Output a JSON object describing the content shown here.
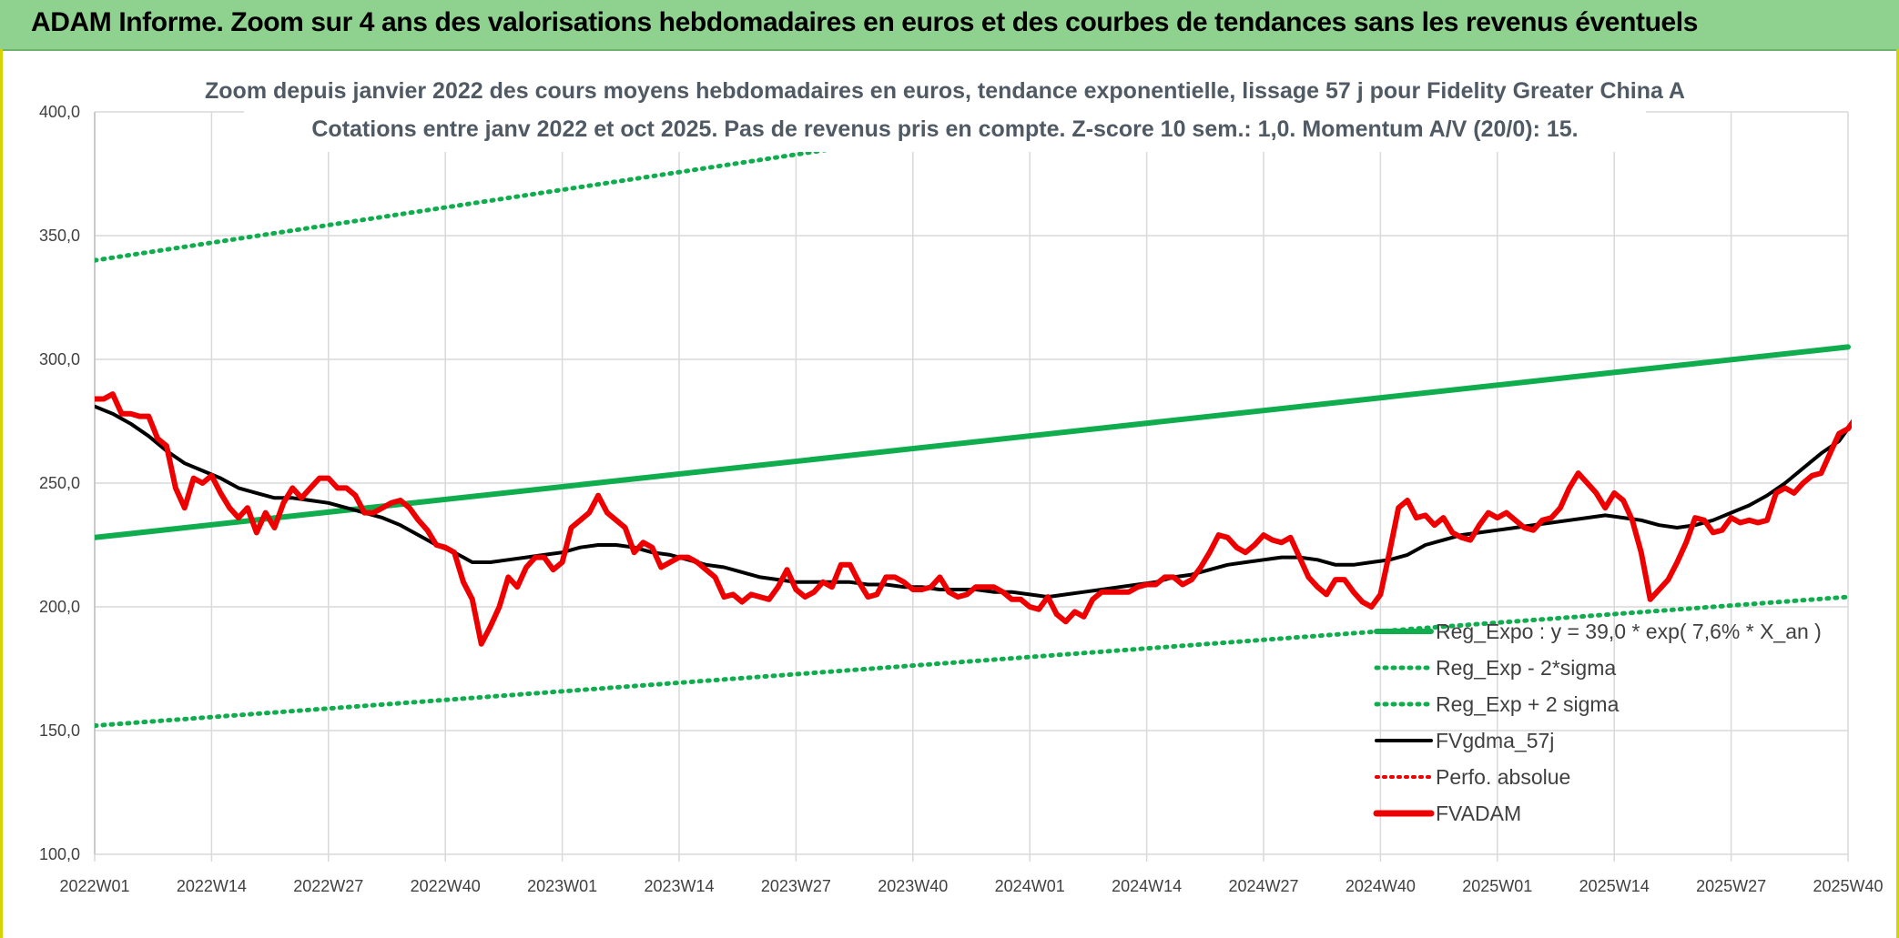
{
  "banner": {
    "title": "ADAM Informe. Zoom sur 4 ans des valorisations hebdomadaires en euros et des courbes de tendances sans les revenus éventuels"
  },
  "colors": {
    "banner_bg": "#8fd18e",
    "trend_green": "#10ad4e",
    "fv_black": "#000000",
    "fvadam_red": "#ee0000",
    "grid": "#d9d9d9"
  },
  "chart_data": {
    "type": "line",
    "title": "Zoom depuis janvier 2022 des cours moyens hebdomadaires en euros, tendance exponentielle, lissage 57 j pour Fidelity Greater China A",
    "subtitle": "Cotations entre janv 2022 et oct 2025. Pas de revenus pris en compte. Z-score 10 sem.: 1,0. Momentum A/V (20/0): 15.",
    "xlabel": "",
    "ylabel": "",
    "ylim": [
      100,
      400
    ],
    "yticks": [
      "100,0",
      "150,0",
      "200,0",
      "250,0",
      "300,0",
      "350,0",
      "400,0"
    ],
    "ytick_values": [
      100,
      150,
      200,
      250,
      300,
      350,
      400
    ],
    "x_range_weeks": [
      0,
      195
    ],
    "xticks": [
      "2022W01",
      "2022W14",
      "2022W27",
      "2022W40",
      "2023W01",
      "2023W14",
      "2023W27",
      "2023W40",
      "2024W01",
      "2024W14",
      "2024W27",
      "2024W40",
      "2025W01",
      "2025W14",
      "2025W27",
      "2025W40"
    ],
    "grid": true,
    "legend_position": "bottom-right",
    "legend": [
      {
        "label": "Reg_Expo : y = 39,0 * exp( 7,6% *  X_an )",
        "style": "solid-green"
      },
      {
        "label": "Reg_Exp - 2*sigma",
        "style": "dotted-green"
      },
      {
        "label": "Reg_Exp + 2 sigma",
        "style": "dotted-green"
      },
      {
        "label": "FVgdma_57j",
        "style": "solid-black"
      },
      {
        "label": "Perfo. absolue",
        "style": "dotted-red"
      },
      {
        "label": "FVADAM",
        "style": "solid-red-thick"
      }
    ],
    "series": [
      {
        "name": "Reg_Expo : y = 39,0 * exp( 7,6% *  X_an )",
        "points": [
          [
            0,
            228
          ],
          [
            195,
            305
          ]
        ]
      },
      {
        "name": "Reg_Exp - 2*sigma",
        "points": [
          [
            0,
            152
          ],
          [
            195,
            204
          ]
        ]
      },
      {
        "name": "Reg_Exp + 2 sigma",
        "points": [
          [
            0,
            340
          ],
          [
            195,
            447
          ]
        ]
      },
      {
        "name": "FVgdma_57j",
        "points": [
          [
            0,
            281
          ],
          [
            2,
            278
          ],
          [
            4,
            274
          ],
          [
            6,
            269
          ],
          [
            8,
            263
          ],
          [
            10,
            258
          ],
          [
            12,
            255
          ],
          [
            14,
            252
          ],
          [
            16,
            248
          ],
          [
            18,
            246
          ],
          [
            20,
            244
          ],
          [
            22,
            244
          ],
          [
            24,
            243
          ],
          [
            26,
            242
          ],
          [
            28,
            240
          ],
          [
            30,
            238
          ],
          [
            32,
            236
          ],
          [
            34,
            233
          ],
          [
            36,
            229
          ],
          [
            38,
            225
          ],
          [
            40,
            222
          ],
          [
            42,
            218
          ],
          [
            44,
            218
          ],
          [
            46,
            219
          ],
          [
            48,
            220
          ],
          [
            50,
            221
          ],
          [
            52,
            222
          ],
          [
            54,
            224
          ],
          [
            56,
            225
          ],
          [
            58,
            225
          ],
          [
            60,
            224
          ],
          [
            62,
            222
          ],
          [
            64,
            221
          ],
          [
            66,
            219
          ],
          [
            68,
            217
          ],
          [
            70,
            216
          ],
          [
            72,
            214
          ],
          [
            74,
            212
          ],
          [
            76,
            211
          ],
          [
            78,
            210
          ],
          [
            80,
            210
          ],
          [
            82,
            210
          ],
          [
            84,
            210
          ],
          [
            86,
            209
          ],
          [
            88,
            209
          ],
          [
            90,
            208
          ],
          [
            92,
            208
          ],
          [
            94,
            207
          ],
          [
            96,
            207
          ],
          [
            98,
            207
          ],
          [
            100,
            206
          ],
          [
            102,
            206
          ],
          [
            104,
            205
          ],
          [
            106,
            204
          ],
          [
            108,
            205
          ],
          [
            110,
            206
          ],
          [
            112,
            207
          ],
          [
            114,
            208
          ],
          [
            116,
            209
          ],
          [
            118,
            210
          ],
          [
            120,
            212
          ],
          [
            122,
            213
          ],
          [
            124,
            215
          ],
          [
            126,
            217
          ],
          [
            128,
            218
          ],
          [
            130,
            219
          ],
          [
            132,
            220
          ],
          [
            134,
            220
          ],
          [
            136,
            219
          ],
          [
            138,
            217
          ],
          [
            140,
            217
          ],
          [
            142,
            218
          ],
          [
            144,
            219
          ],
          [
            146,
            221
          ],
          [
            148,
            225
          ],
          [
            150,
            227
          ],
          [
            152,
            229
          ],
          [
            154,
            230
          ],
          [
            156,
            231
          ],
          [
            158,
            232
          ],
          [
            160,
            233
          ],
          [
            162,
            234
          ],
          [
            164,
            235
          ],
          [
            166,
            236
          ],
          [
            168,
            237
          ],
          [
            170,
            236
          ],
          [
            172,
            235
          ],
          [
            174,
            233
          ],
          [
            176,
            232
          ],
          [
            178,
            233
          ],
          [
            180,
            235
          ],
          [
            182,
            238
          ],
          [
            184,
            241
          ],
          [
            186,
            245
          ],
          [
            188,
            250
          ],
          [
            190,
            256
          ],
          [
            192,
            262
          ],
          [
            194,
            267
          ],
          [
            195,
            272
          ]
        ]
      },
      {
        "name": "FVADAM",
        "points": [
          [
            0,
            284
          ],
          [
            1,
            284
          ],
          [
            2,
            286
          ],
          [
            3,
            278
          ],
          [
            4,
            278
          ],
          [
            5,
            277
          ],
          [
            6,
            277
          ],
          [
            7,
            268
          ],
          [
            8,
            265
          ],
          [
            9,
            248
          ],
          [
            10,
            240
          ],
          [
            11,
            252
          ],
          [
            12,
            250
          ],
          [
            13,
            253
          ],
          [
            14,
            246
          ],
          [
            15,
            240
          ],
          [
            16,
            236
          ],
          [
            17,
            240
          ],
          [
            18,
            230
          ],
          [
            19,
            238
          ],
          [
            20,
            232
          ],
          [
            21,
            242
          ],
          [
            22,
            248
          ],
          [
            23,
            244
          ],
          [
            24,
            248
          ],
          [
            25,
            252
          ],
          [
            26,
            252
          ],
          [
            27,
            248
          ],
          [
            28,
            248
          ],
          [
            29,
            245
          ],
          [
            30,
            238
          ],
          [
            31,
            238
          ],
          [
            32,
            240
          ],
          [
            33,
            242
          ],
          [
            34,
            243
          ],
          [
            35,
            240
          ],
          [
            36,
            235
          ],
          [
            37,
            231
          ],
          [
            38,
            225
          ],
          [
            39,
            224
          ],
          [
            40,
            222
          ],
          [
            41,
            210
          ],
          [
            42,
            203
          ],
          [
            43,
            185
          ],
          [
            44,
            192
          ],
          [
            45,
            200
          ],
          [
            46,
            212
          ],
          [
            47,
            208
          ],
          [
            48,
            216
          ],
          [
            49,
            220
          ],
          [
            50,
            220
          ],
          [
            51,
            215
          ],
          [
            52,
            218
          ],
          [
            53,
            232
          ],
          [
            54,
            235
          ],
          [
            55,
            238
          ],
          [
            56,
            245
          ],
          [
            57,
            238
          ],
          [
            58,
            235
          ],
          [
            59,
            232
          ],
          [
            60,
            222
          ],
          [
            61,
            226
          ],
          [
            62,
            224
          ],
          [
            63,
            216
          ],
          [
            64,
            218
          ],
          [
            65,
            220
          ],
          [
            66,
            220
          ],
          [
            67,
            218
          ],
          [
            68,
            215
          ],
          [
            69,
            212
          ],
          [
            70,
            204
          ],
          [
            71,
            205
          ],
          [
            72,
            202
          ],
          [
            73,
            205
          ],
          [
            74,
            204
          ],
          [
            75,
            203
          ],
          [
            76,
            208
          ],
          [
            77,
            215
          ],
          [
            78,
            207
          ],
          [
            79,
            204
          ],
          [
            80,
            206
          ],
          [
            81,
            210
          ],
          [
            82,
            208
          ],
          [
            83,
            217
          ],
          [
            84,
            217
          ],
          [
            85,
            210
          ],
          [
            86,
            204
          ],
          [
            87,
            205
          ],
          [
            88,
            212
          ],
          [
            89,
            212
          ],
          [
            90,
            210
          ],
          [
            91,
            207
          ],
          [
            92,
            207
          ],
          [
            93,
            208
          ],
          [
            94,
            212
          ],
          [
            95,
            206
          ],
          [
            96,
            204
          ],
          [
            97,
            205
          ],
          [
            98,
            208
          ],
          [
            99,
            208
          ],
          [
            100,
            208
          ],
          [
            101,
            206
          ],
          [
            102,
            203
          ],
          [
            103,
            203
          ],
          [
            104,
            200
          ],
          [
            105,
            199
          ],
          [
            106,
            204
          ],
          [
            107,
            197
          ],
          [
            108,
            194
          ],
          [
            109,
            198
          ],
          [
            110,
            196
          ],
          [
            111,
            203
          ],
          [
            112,
            206
          ],
          [
            113,
            206
          ],
          [
            114,
            206
          ],
          [
            115,
            206
          ],
          [
            116,
            208
          ],
          [
            117,
            209
          ],
          [
            118,
            209
          ],
          [
            119,
            212
          ],
          [
            120,
            212
          ],
          [
            121,
            209
          ],
          [
            122,
            211
          ],
          [
            123,
            216
          ],
          [
            124,
            222
          ],
          [
            125,
            229
          ],
          [
            126,
            228
          ],
          [
            127,
            224
          ],
          [
            128,
            222
          ],
          [
            129,
            225
          ],
          [
            130,
            229
          ],
          [
            131,
            227
          ],
          [
            132,
            226
          ],
          [
            133,
            228
          ],
          [
            134,
            220
          ],
          [
            135,
            212
          ],
          [
            136,
            208
          ],
          [
            137,
            205
          ],
          [
            138,
            211
          ],
          [
            139,
            211
          ],
          [
            140,
            206
          ],
          [
            141,
            202
          ],
          [
            142,
            200
          ],
          [
            143,
            205
          ],
          [
            144,
            222
          ],
          [
            145,
            240
          ],
          [
            146,
            243
          ],
          [
            147,
            236
          ],
          [
            148,
            237
          ],
          [
            149,
            233
          ],
          [
            150,
            236
          ],
          [
            151,
            230
          ],
          [
            152,
            228
          ],
          [
            153,
            227
          ],
          [
            154,
            233
          ],
          [
            155,
            238
          ],
          [
            156,
            236
          ],
          [
            157,
            238
          ],
          [
            158,
            235
          ],
          [
            159,
            232
          ],
          [
            160,
            231
          ],
          [
            161,
            235
          ],
          [
            162,
            236
          ],
          [
            163,
            240
          ],
          [
            164,
            248
          ],
          [
            165,
            254
          ],
          [
            166,
            250
          ],
          [
            167,
            246
          ],
          [
            168,
            240
          ],
          [
            169,
            246
          ],
          [
            170,
            243
          ],
          [
            171,
            235
          ],
          [
            172,
            222
          ],
          [
            173,
            203
          ],
          [
            174,
            207
          ],
          [
            175,
            211
          ],
          [
            176,
            218
          ],
          [
            177,
            226
          ],
          [
            178,
            236
          ],
          [
            179,
            235
          ],
          [
            180,
            230
          ],
          [
            181,
            231
          ],
          [
            182,
            236
          ],
          [
            183,
            234
          ],
          [
            184,
            235
          ],
          [
            185,
            234
          ],
          [
            186,
            235
          ],
          [
            187,
            246
          ],
          [
            188,
            248
          ],
          [
            189,
            246
          ],
          [
            190,
            250
          ],
          [
            191,
            253
          ],
          [
            192,
            254
          ],
          [
            193,
            262
          ],
          [
            194,
            270
          ],
          [
            195,
            272
          ],
          [
            196,
            277
          ],
          [
            197,
            278
          ],
          [
            198,
            274
          ],
          [
            199,
            275
          ],
          [
            200,
            281
          ]
        ]
      }
    ]
  }
}
